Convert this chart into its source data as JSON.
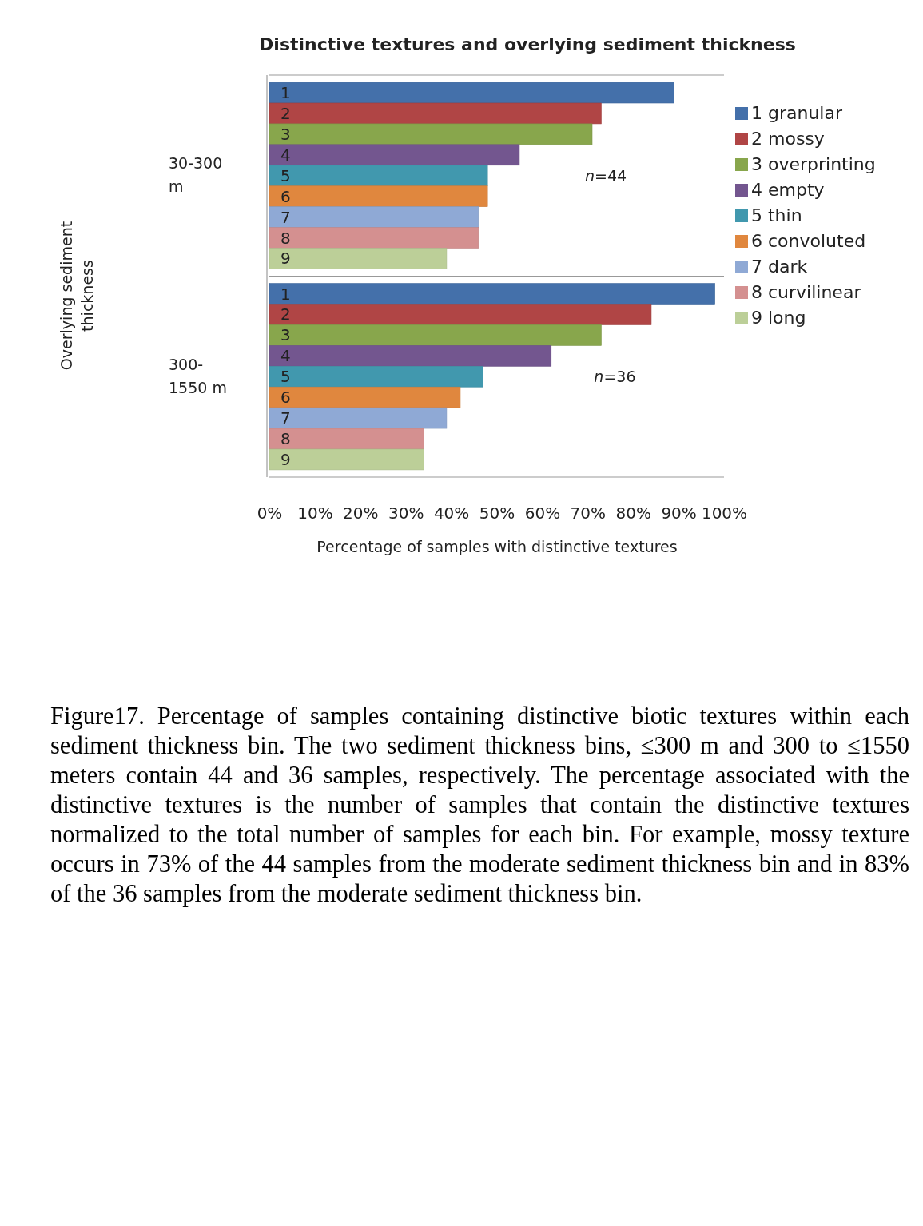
{
  "chart_data": {
    "type": "bar",
    "orientation": "horizontal",
    "title": "Distinctive textures and overlying sediment thickness",
    "xlabel": "Percentage of samples with distinctive textures",
    "ylabel": "Overlying sediment thickness",
    "categories": [
      "30-300 m",
      "300-1550 m"
    ],
    "series": [
      {
        "name": "1 granular",
        "color": "#4470aa",
        "values": [
          89,
          98
        ]
      },
      {
        "name": "2 mossy",
        "color": "#b04545",
        "values": [
          73,
          84
        ]
      },
      {
        "name": "3 overprinting",
        "color": "#88a64c",
        "values": [
          71,
          73
        ]
      },
      {
        "name": "4 empty",
        "color": "#73568f",
        "values": [
          55,
          62
        ]
      },
      {
        "name": "5 thin",
        "color": "#4198ae",
        "values": [
          48,
          47
        ]
      },
      {
        "name": "6 convoluted",
        "color": "#e0873e",
        "values": [
          48,
          42
        ]
      },
      {
        "name": "7 dark",
        "color": "#8fa9d5",
        "values": [
          46,
          39
        ]
      },
      {
        "name": "8 curvilinear",
        "color": "#d49090",
        "values": [
          46,
          34
        ]
      },
      {
        "name": "9 long",
        "color": "#bccf98",
        "values": [
          39,
          34
        ]
      }
    ],
    "xlim": [
      0,
      100
    ],
    "xticks": [
      {
        "value": 0,
        "label": "0%"
      },
      {
        "value": 10,
        "label": "10%"
      },
      {
        "value": 20,
        "label": "20%"
      },
      {
        "value": 30,
        "label": "30%"
      },
      {
        "value": 40,
        "label": "40%"
      },
      {
        "value": 50,
        "label": "50%"
      },
      {
        "value": 60,
        "label": "60%"
      },
      {
        "value": 70,
        "label": "70%"
      },
      {
        "value": 80,
        "label": "80%"
      },
      {
        "value": 90,
        "label": "90%"
      },
      {
        "value": 100,
        "label": "100%"
      }
    ],
    "legend": "right",
    "annotations": [
      "1",
      "2",
      "3",
      "4",
      "5",
      "6",
      "7",
      "8",
      "9",
      "1",
      "2",
      "3",
      "4",
      "5",
      "6",
      "7",
      "8",
      "9",
      "n=44",
      "n=36",
      "Figure17. Percentage of samples containing distinctive biotic textures within each sediment thickness bin. The two sediment thickness bins, ≤300 m and 300 to ≤1550 meters contain 44 and 36 samples, respectively. The percentage associated with the distinctive textures is the number of samples that contain the distinctive textures normalized to the total number of samples for each bin. For example, mossy texture occurs in 73% of the 44 samples from the moderate sediment thickness bin and in 83% of the 36 samples from the moderate sediment thickness bin."
    ]
  }
}
